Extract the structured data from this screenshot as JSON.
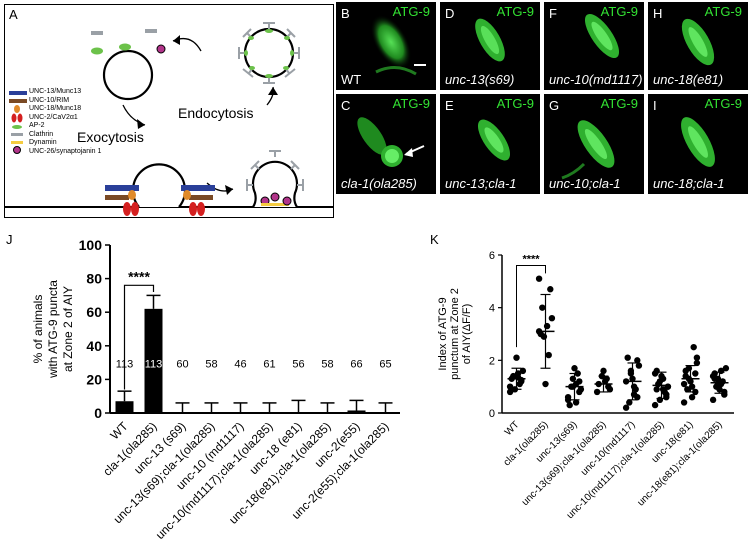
{
  "panelA": {
    "letter": "A",
    "legend": [
      {
        "label": "UNC-13/Munc13",
        "color": "#2a3f99"
      },
      {
        "label": "UNC-10/RIM",
        "color": "#7a4a25"
      },
      {
        "label": "UNC-18/Munc18",
        "color": "#e08a2a"
      },
      {
        "label": "UNC-2/CaV2α1",
        "color": "#d42020"
      },
      {
        "label": "AP-2",
        "color": "#6cc24a"
      },
      {
        "label": "Clathrin",
        "color": "#9aa0a6"
      },
      {
        "label": "Dynamin",
        "color": "#f5cc40"
      },
      {
        "label": "UNC-26/synaptojanin 1",
        "color": "#b2348a"
      }
    ],
    "endocytosis": "Endocytosis",
    "exocytosis": "Exocytosis"
  },
  "images": [
    {
      "letter": "B",
      "channel": "ATG-9",
      "genotype": "WT"
    },
    {
      "letter": "D",
      "channel": "ATG-9",
      "genotype": "unc-13(s69)"
    },
    {
      "letter": "F",
      "channel": "ATG-9",
      "genotype": "unc-10(md1117)"
    },
    {
      "letter": "H",
      "channel": "ATG-9",
      "genotype": "unc-18(e81)"
    },
    {
      "letter": "C",
      "channel": "ATG-9",
      "genotype": "cla-1(ola285)"
    },
    {
      "letter": "E",
      "channel": "ATG-9",
      "genotype": "unc-13;cla-1"
    },
    {
      "letter": "G",
      "channel": "ATG-9",
      "genotype": "unc-10;cla-1"
    },
    {
      "letter": "I",
      "channel": "ATG-9",
      "genotype": "unc-18;cla-1"
    }
  ],
  "chart_data": [
    {
      "panel": "J",
      "type": "bar",
      "ylabel": "% of animals with ATG-9 puncta at Zone 2 of AIY",
      "ylim": [
        0,
        100
      ],
      "yticks": [
        0,
        20,
        40,
        60,
        80,
        100
      ],
      "categories": [
        "WT",
        "cla-1(ola285)",
        "unc-13 (s69)",
        "unc-13(s69);cla-1(ola285)",
        "unc-10 (md1117)",
        "unc-10(md1117);cla-1(ola285)",
        "unc-18 (e81)",
        "unc-18(e81);cla-1(ola285)",
        "unc-2(e55)",
        "unc-2(e55);cla-1(ola285)"
      ],
      "values": [
        7,
        62,
        0,
        0,
        0,
        0,
        0,
        0,
        1.5,
        0
      ],
      "errors": [
        6,
        8,
        6,
        6,
        6,
        6,
        7.5,
        6,
        6,
        6
      ],
      "n": [
        "113",
        "113",
        "60",
        "58",
        "46",
        "61",
        "56",
        "58",
        "66",
        "65"
      ],
      "significance": "****"
    },
    {
      "panel": "K",
      "type": "scatter",
      "ylabel": "Index of ATG-9 punctum at Zone 2 of AIY(ΔF/F)",
      "ylim": [
        0,
        6
      ],
      "yticks": [
        0,
        2,
        4,
        6
      ],
      "categories": [
        "WT",
        "cla-1(ola285)",
        "unc-13(s69)",
        "unc-13(s69);cla-1(ola285)",
        "unc-10(md1117)",
        "unc-10(md1117);cla-1(ola285)",
        "unc-18(e81)",
        "unc-18(e81);cla-1(ola285)"
      ],
      "means": [
        1.3,
        3.1,
        1.0,
        1.1,
        1.2,
        1.05,
        1.3,
        1.15
      ],
      "sd": [
        0.4,
        1.4,
        0.5,
        0.3,
        0.7,
        0.5,
        0.5,
        0.4
      ],
      "points": [
        [
          1.0,
          1.2,
          1.5,
          0.9,
          1.3,
          1.6,
          1.1,
          2.1,
          1.4,
          0.8,
          1.25,
          1.35
        ],
        [
          5.1,
          4.7,
          3.3,
          2.9,
          3.0,
          3.6,
          2.2,
          1.1,
          4.0,
          3.1
        ],
        [
          0.5,
          0.8,
          1.1,
          1.3,
          0.3,
          0.9,
          1.5,
          1.7,
          1.0,
          0.6,
          1.2,
          0.4,
          1.0
        ],
        [
          0.8,
          1.0,
          1.2,
          1.4,
          1.1,
          0.9,
          1.3,
          1.6
        ],
        [
          0.2,
          0.6,
          1.0,
          1.5,
          2.1,
          1.8,
          0.9,
          1.3,
          0.4,
          1.2,
          2.0,
          0.7,
          1.6
        ],
        [
          0.3,
          0.6,
          0.9,
          1.2,
          1.6,
          1.0,
          0.8,
          1.4,
          1.1,
          1.5,
          0.7,
          1.3,
          0.5,
          0.9,
          1.0
        ],
        [
          0.4,
          0.8,
          1.0,
          1.3,
          1.6,
          1.9,
          2.5,
          1.2,
          0.9,
          1.1,
          1.5,
          0.6,
          1.7,
          1.4,
          2.1
        ],
        [
          0.5,
          0.8,
          1.1,
          1.3,
          1.5,
          1.7,
          1.2,
          0.9,
          1.0,
          1.4,
          0.7,
          1.6,
          1.1,
          1.3
        ]
      ],
      "significance": "****"
    }
  ]
}
